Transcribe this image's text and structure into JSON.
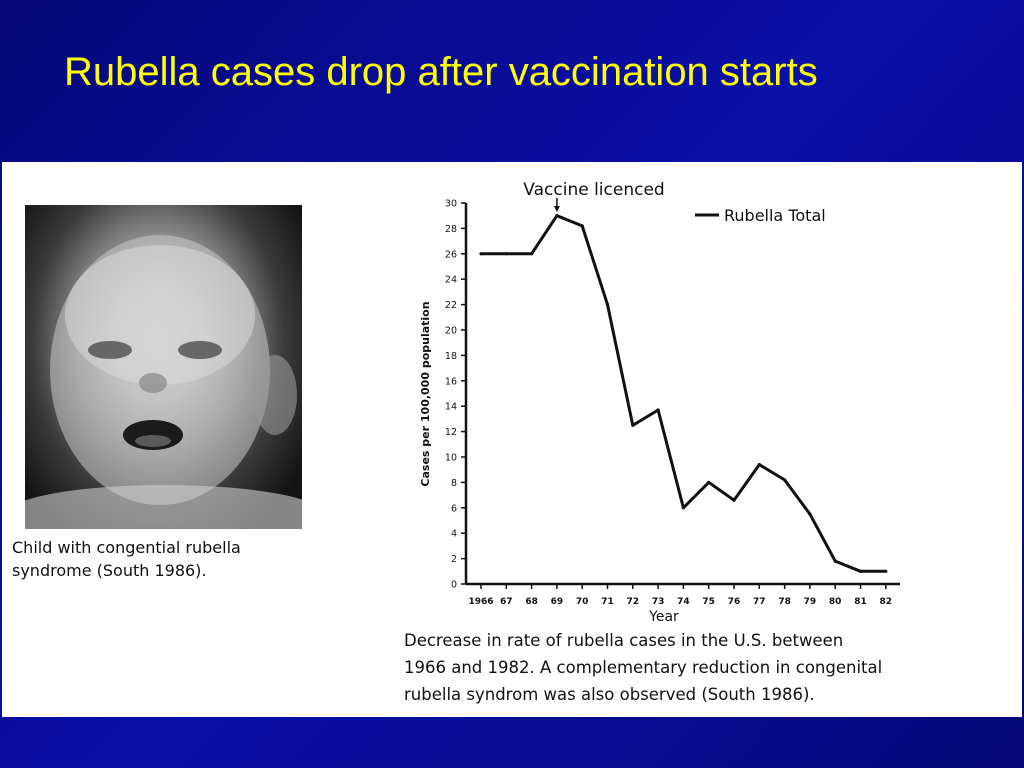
{
  "slide": {
    "title": "Rubella cases drop after vaccination starts"
  },
  "photo": {
    "caption_line1": "Child with congential rubella",
    "caption_line2": "syndrome (South 1986)."
  },
  "chart_caption": {
    "line1": "Decrease  in rate of rubella cases in the U.S. between",
    "line2": "1966 and 1982.  A complementary reduction in congenital",
    "line3": "rubella syndrom was also observed (South 1986)."
  },
  "colors": {
    "background": "#0b10a8",
    "title": "#ffff00",
    "panel": "#ffffff",
    "line": "#111111"
  },
  "chart_data": {
    "type": "line",
    "title": "",
    "xlabel": "Year",
    "ylabel": "Cases per 100,000 population",
    "categories": [
      "1966",
      "67",
      "68",
      "69",
      "70",
      "71",
      "72",
      "73",
      "74",
      "75",
      "76",
      "77",
      "78",
      "79",
      "80",
      "81",
      "82"
    ],
    "series": [
      {
        "name": "Rubella Total",
        "values": [
          26,
          26,
          26,
          29,
          28.2,
          22,
          12.5,
          13.7,
          6,
          8,
          6.6,
          9.4,
          8.2,
          5.5,
          1.8,
          1,
          1
        ]
      }
    ],
    "yticks": [
      0,
      2,
      4,
      6,
      8,
      10,
      12,
      14,
      16,
      18,
      20,
      22,
      24,
      26,
      28,
      30
    ],
    "ylim": [
      0,
      30
    ],
    "grid": false,
    "legend": "top-right",
    "annotation": {
      "text": "Vaccine licenced",
      "category": "69"
    }
  }
}
